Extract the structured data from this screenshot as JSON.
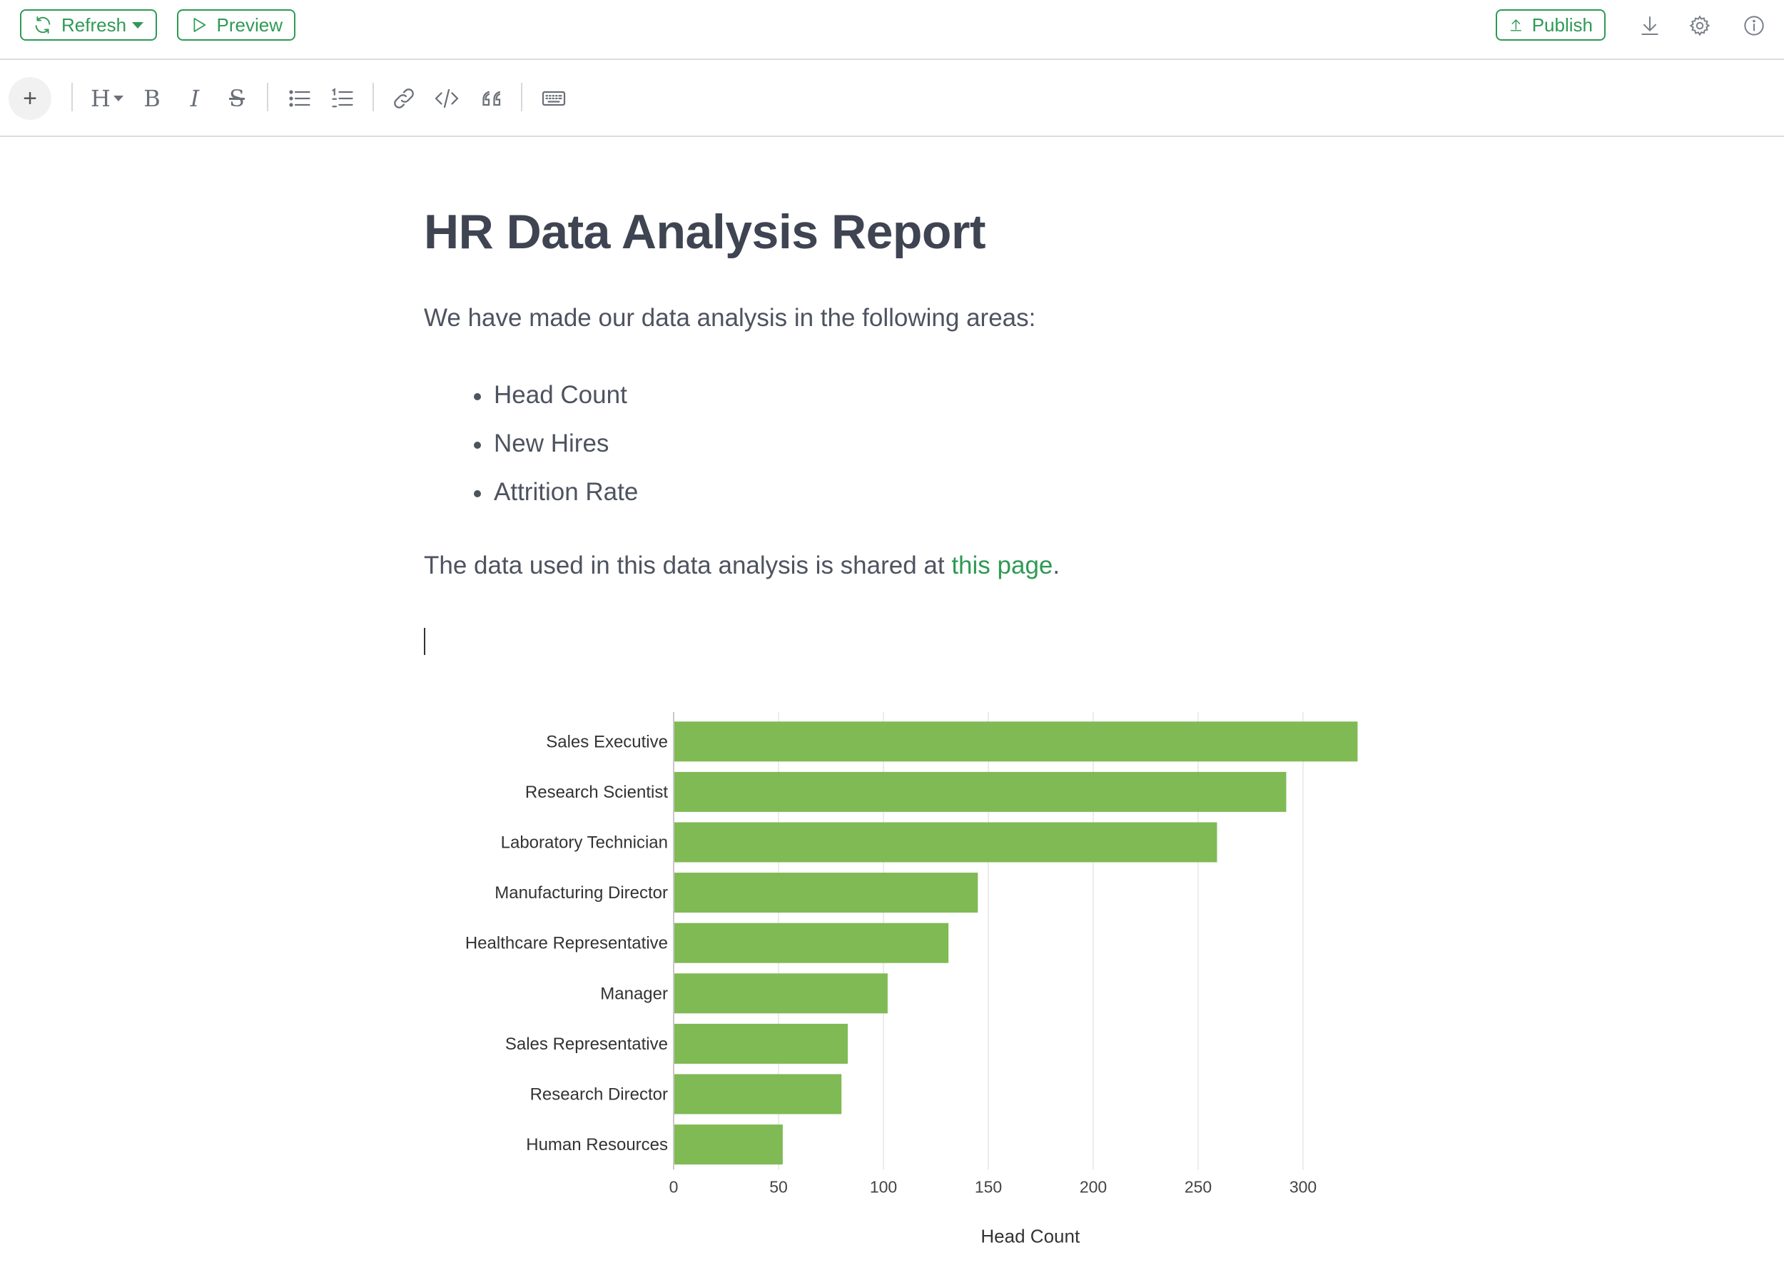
{
  "topbar": {
    "refresh_label": "Refresh",
    "preview_label": "Preview",
    "publish_label": "Publish",
    "icons": [
      "refresh-icon",
      "play-icon",
      "upload-icon",
      "download-icon",
      "gear-icon",
      "info-icon"
    ]
  },
  "toolbar": {
    "plus_label": "+",
    "heading_label": "H",
    "bold_label": "B",
    "italic_label": "I",
    "strike_label": "S",
    "icons": [
      "bullet-list-icon",
      "numbered-list-icon",
      "link-icon",
      "code-icon",
      "quote-icon",
      "keyboard-icon"
    ]
  },
  "document": {
    "title": "HR Data Analysis Report",
    "intro": "We have made our data analysis in the following areas:",
    "bullets": [
      "Head Count",
      "New Hires",
      "Attrition Rate"
    ],
    "shared_prefix": "The data used in this data analysis is shared at ",
    "shared_link": "this page",
    "shared_suffix": "."
  },
  "colors": {
    "accent": "#2e9a55",
    "bar": "#7fba54",
    "text": "#4e5360"
  },
  "chart_data": {
    "type": "bar",
    "orientation": "horizontal",
    "categories": [
      "Sales Executive",
      "Research Scientist",
      "Laboratory Technician",
      "Manufacturing Director",
      "Healthcare Representative",
      "Manager",
      "Sales Representative",
      "Research Director",
      "Human Resources"
    ],
    "values": [
      326,
      292,
      259,
      145,
      131,
      102,
      83,
      80,
      52
    ],
    "xlabel": "Head Count",
    "ylabel": "",
    "xlim": [
      0,
      340
    ],
    "xticks": [
      0,
      50,
      100,
      150,
      200,
      250,
      300
    ],
    "grid": true,
    "legend": "none"
  }
}
